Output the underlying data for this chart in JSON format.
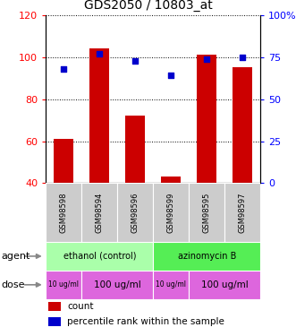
{
  "title": "GDS2050 / 10803_at",
  "samples": [
    "GSM98598",
    "GSM98594",
    "GSM98596",
    "GSM98599",
    "GSM98595",
    "GSM98597"
  ],
  "counts": [
    61,
    104,
    72,
    43,
    101,
    95
  ],
  "percentiles": [
    68,
    77,
    73,
    64,
    74,
    75
  ],
  "ylim_left": [
    40,
    120
  ],
  "ylim_right": [
    0,
    100
  ],
  "yticks_left": [
    40,
    60,
    80,
    100,
    120
  ],
  "yticks_right": [
    0,
    25,
    50,
    75,
    100
  ],
  "ytick_labels_right": [
    "0",
    "25",
    "50",
    "75",
    "100%"
  ],
  "bar_color": "#cc0000",
  "dot_color": "#0000cc",
  "bar_bottom": 40,
  "agent_groups": [
    {
      "label": "ethanol (control)",
      "color": "#aaffaa",
      "start": 0,
      "end": 3
    },
    {
      "label": "azinomycin B",
      "color": "#55ee55",
      "start": 3,
      "end": 6
    }
  ],
  "dose_groups": [
    {
      "label": "10 ug/ml",
      "start": 0,
      "end": 1,
      "fontsize": 5.5
    },
    {
      "label": "100 ug/ml",
      "start": 1,
      "end": 3,
      "fontsize": 7.5
    },
    {
      "label": "10 ug/ml",
      "start": 3,
      "end": 4,
      "fontsize": 5.5
    },
    {
      "label": "100 ug/ml",
      "start": 4,
      "end": 6,
      "fontsize": 7.5
    }
  ],
  "dose_color": "#dd66dd",
  "plot_bg": "#ffffff",
  "label_bg": "#cccccc",
  "title_fontsize": 10,
  "tick_fontsize": 8,
  "bar_width": 0.55
}
